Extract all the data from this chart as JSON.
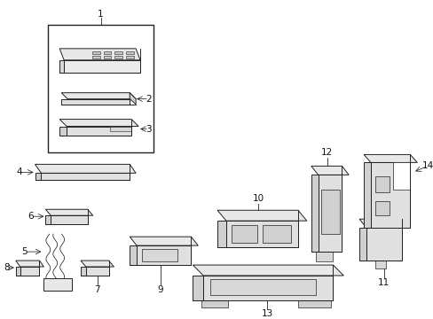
{
  "bg_color": "#ffffff",
  "line_color": "#222222",
  "label_color": "#111111",
  "figsize": [
    4.89,
    3.6
  ],
  "dpi": 100,
  "lw": 0.7
}
